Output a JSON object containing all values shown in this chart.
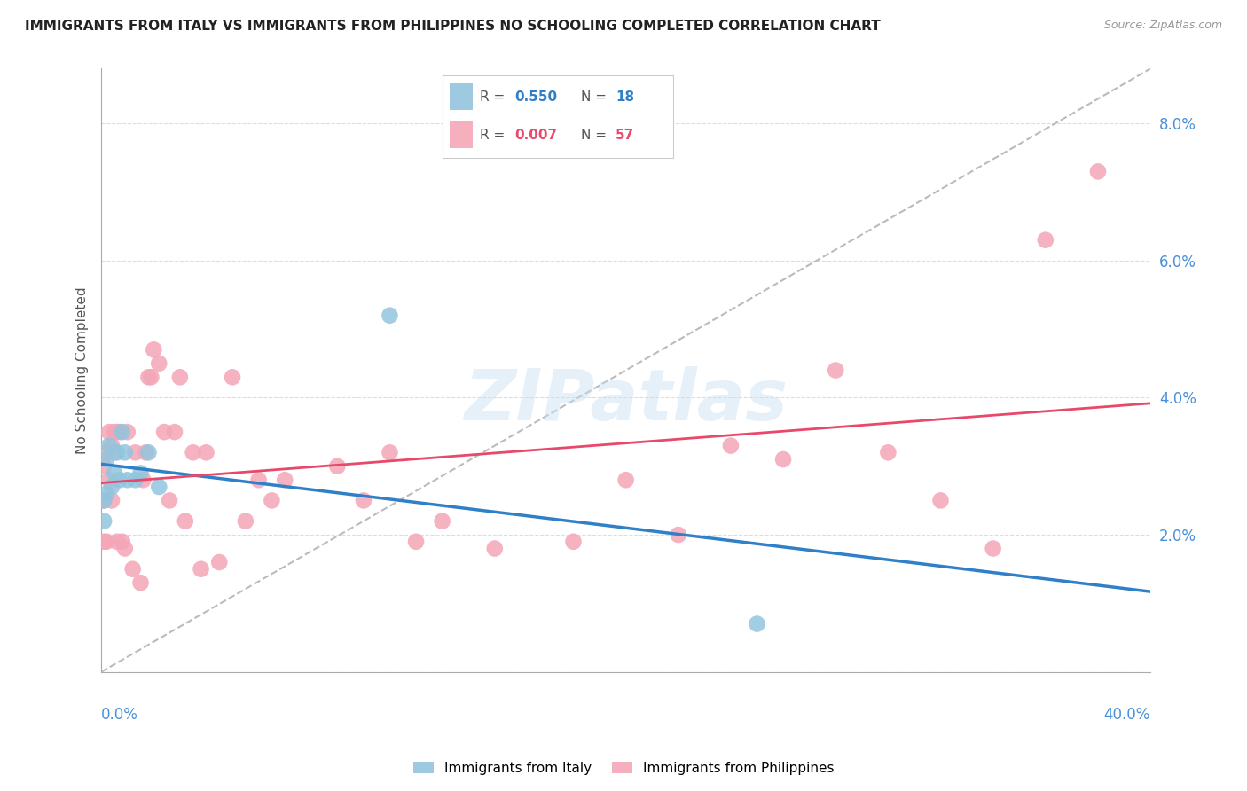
{
  "title": "IMMIGRANTS FROM ITALY VS IMMIGRANTS FROM PHILIPPINES NO SCHOOLING COMPLETED CORRELATION CHART",
  "source": "Source: ZipAtlas.com",
  "ylabel": "No Schooling Completed",
  "xlim": [
    0.0,
    0.4
  ],
  "ylim": [
    0.0,
    0.088
  ],
  "yticks": [
    0.0,
    0.02,
    0.04,
    0.06,
    0.08
  ],
  "ytick_labels": [
    "",
    "2.0%",
    "4.0%",
    "6.0%",
    "8.0%"
  ],
  "italy_R": 0.55,
  "italy_N": 18,
  "philippines_R": 0.007,
  "philippines_N": 57,
  "italy_color": "#92c5de",
  "philippines_color": "#f4a6b8",
  "italy_trend_color": "#3080c8",
  "philippines_trend_color": "#e8486a",
  "ref_line_color": "#bbbbbb",
  "background_color": "#ffffff",
  "grid_color": "#dddddd",
  "italy_x": [
    0.001,
    0.001,
    0.002,
    0.002,
    0.003,
    0.004,
    0.005,
    0.006,
    0.007,
    0.008,
    0.009,
    0.01,
    0.013,
    0.015,
    0.018,
    0.022,
    0.11,
    0.25
  ],
  "italy_y": [
    0.025,
    0.022,
    0.031,
    0.026,
    0.033,
    0.027,
    0.029,
    0.032,
    0.028,
    0.035,
    0.032,
    0.028,
    0.028,
    0.029,
    0.032,
    0.027,
    0.052,
    0.007
  ],
  "philippines_x": [
    0.001,
    0.001,
    0.001,
    0.002,
    0.002,
    0.003,
    0.003,
    0.004,
    0.004,
    0.005,
    0.005,
    0.006,
    0.006,
    0.007,
    0.008,
    0.009,
    0.01,
    0.012,
    0.013,
    0.015,
    0.016,
    0.017,
    0.018,
    0.019,
    0.02,
    0.022,
    0.024,
    0.026,
    0.028,
    0.03,
    0.032,
    0.035,
    0.038,
    0.04,
    0.045,
    0.05,
    0.055,
    0.06,
    0.065,
    0.07,
    0.09,
    0.1,
    0.11,
    0.12,
    0.13,
    0.15,
    0.18,
    0.2,
    0.22,
    0.24,
    0.26,
    0.28,
    0.3,
    0.32,
    0.34,
    0.36,
    0.38
  ],
  "philippines_y": [
    0.019,
    0.025,
    0.03,
    0.019,
    0.032,
    0.028,
    0.035,
    0.025,
    0.033,
    0.032,
    0.035,
    0.019,
    0.035,
    0.035,
    0.019,
    0.018,
    0.035,
    0.015,
    0.032,
    0.013,
    0.028,
    0.032,
    0.043,
    0.043,
    0.047,
    0.045,
    0.035,
    0.025,
    0.035,
    0.043,
    0.022,
    0.032,
    0.015,
    0.032,
    0.016,
    0.043,
    0.022,
    0.028,
    0.025,
    0.028,
    0.03,
    0.025,
    0.032,
    0.019,
    0.022,
    0.018,
    0.019,
    0.028,
    0.02,
    0.033,
    0.031,
    0.044,
    0.032,
    0.025,
    0.018,
    0.063,
    0.073
  ]
}
